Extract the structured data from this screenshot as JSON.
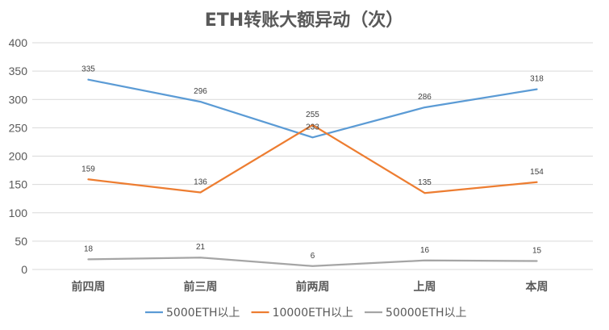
{
  "chart_data": {
    "type": "line",
    "title": "ETH转账大额异动（次）",
    "categories": [
      "前四周",
      "前三周",
      "前两周",
      "上周",
      "本周"
    ],
    "series": [
      {
        "name": "5000ETH以上",
        "color": "#5b9bd5",
        "values": [
          335,
          296,
          233,
          286,
          318
        ]
      },
      {
        "name": "10000ETH以上",
        "color": "#ed7d31",
        "values": [
          159,
          136,
          255,
          135,
          154
        ]
      },
      {
        "name": "50000ETH以上",
        "color": "#a5a5a5",
        "values": [
          18,
          21,
          6,
          16,
          15
        ]
      }
    ],
    "ylim": [
      0,
      400
    ],
    "yticks": [
      0,
      50,
      100,
      150,
      200,
      250,
      300,
      350,
      400
    ],
    "grid": true,
    "legend": "bottom"
  }
}
